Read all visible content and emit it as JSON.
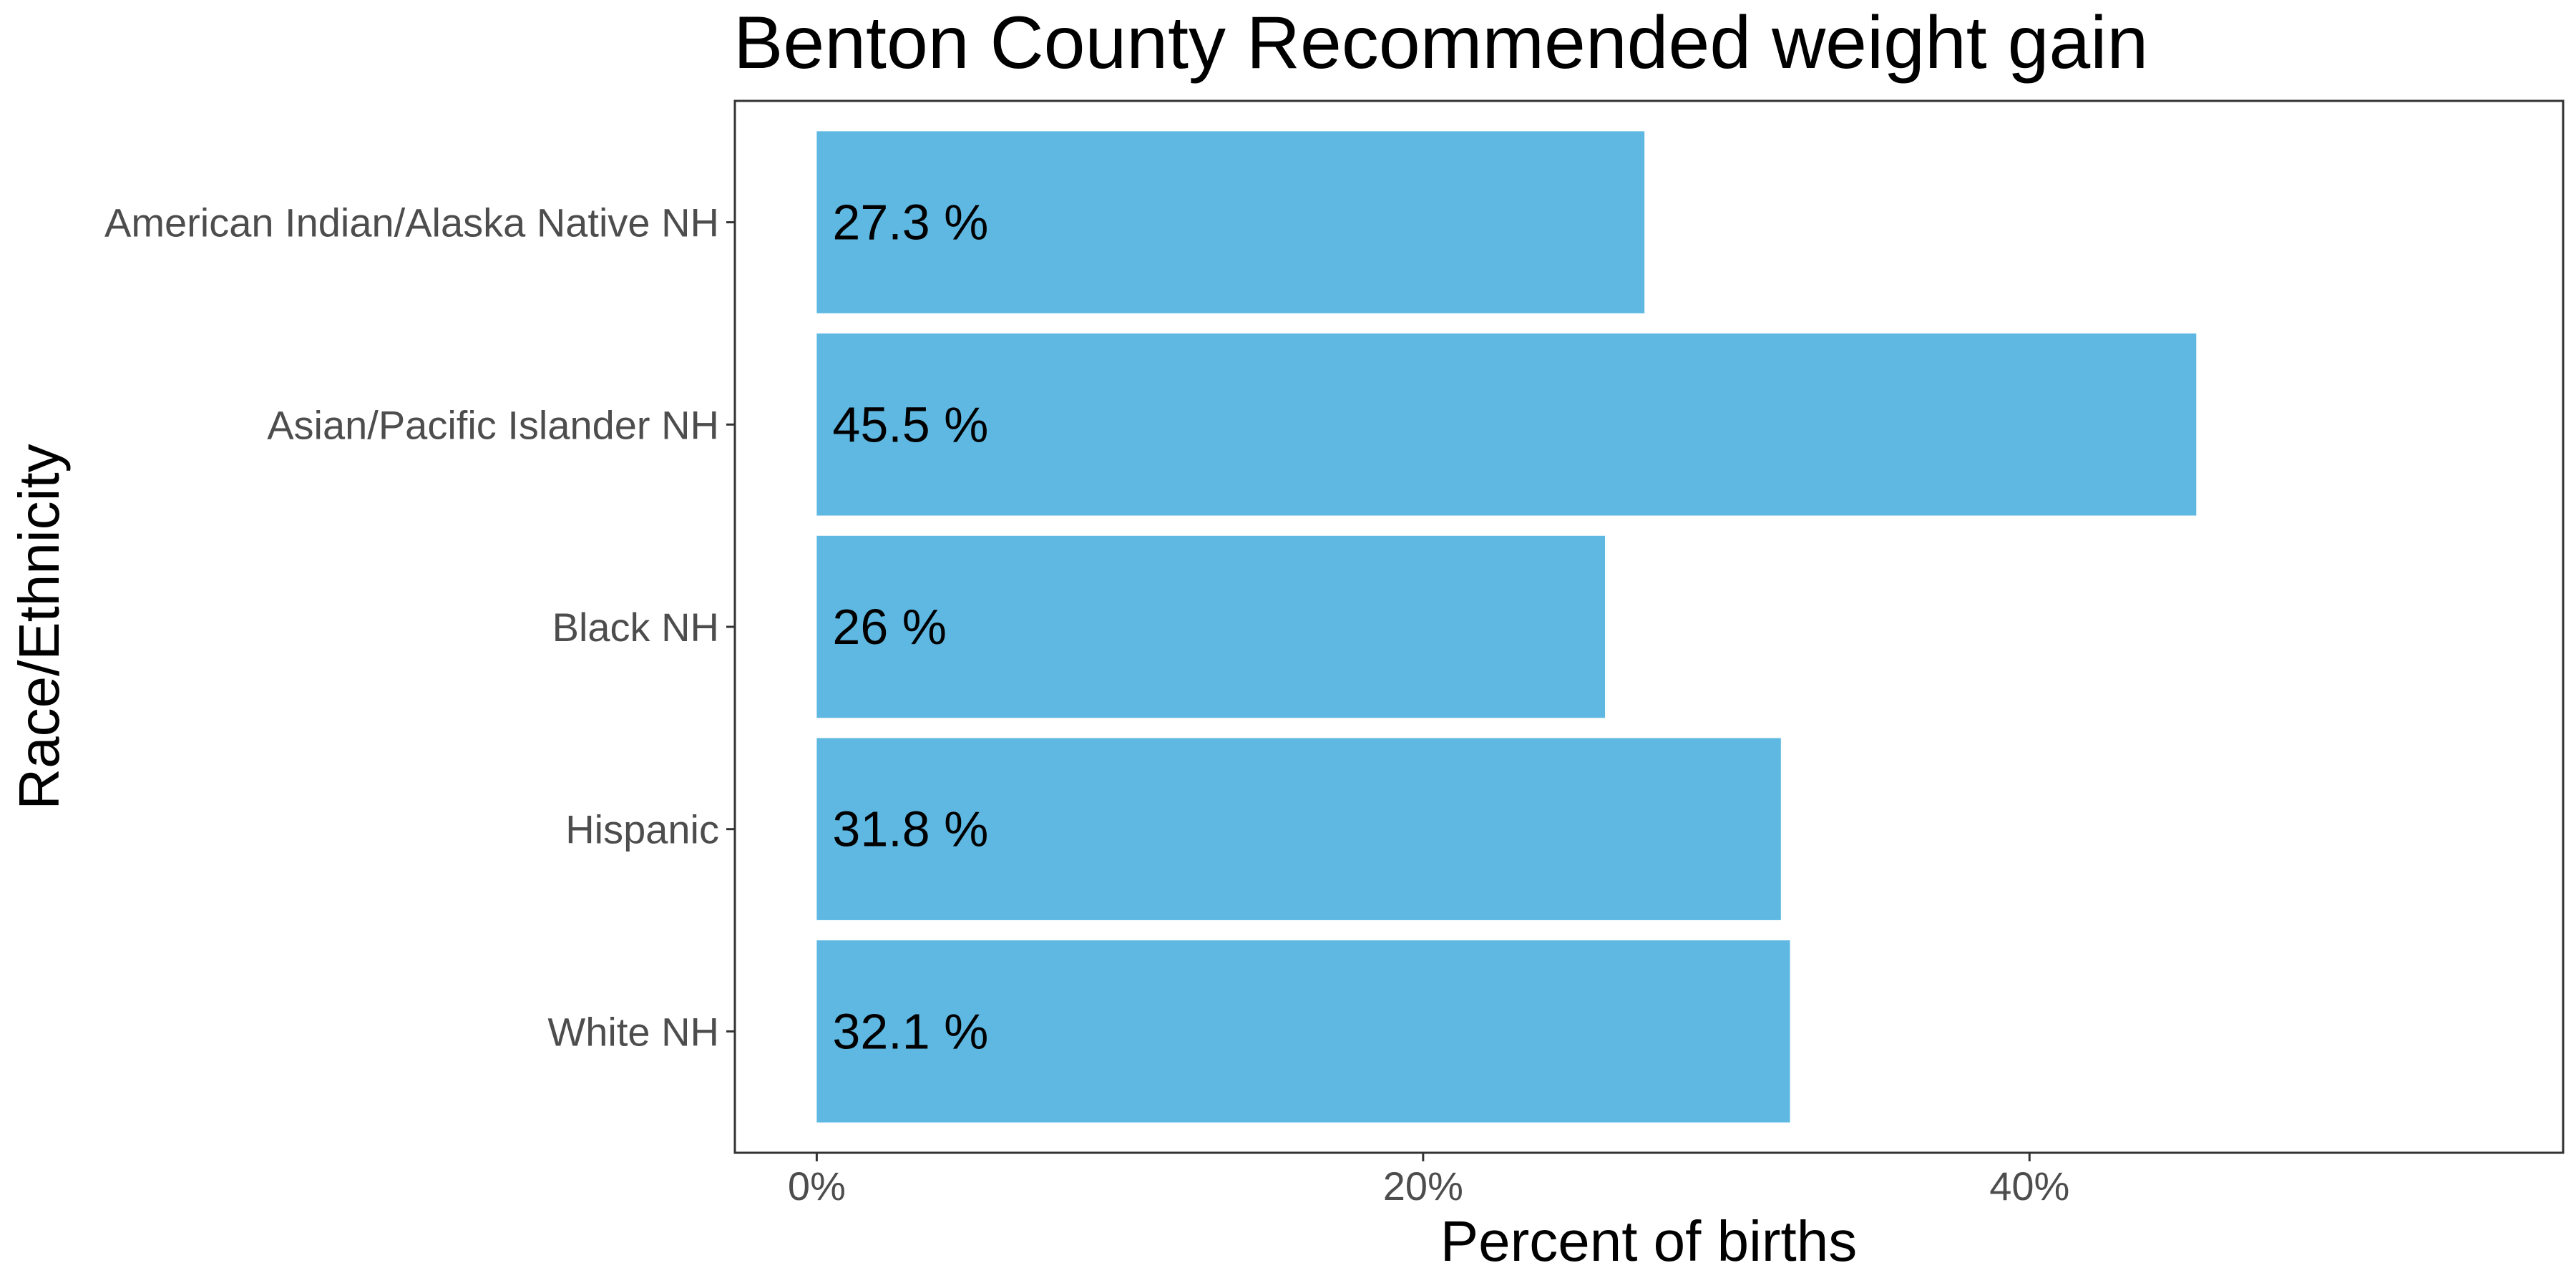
{
  "colors": {
    "bar": "#5eb8e2",
    "panel_border": "#333333",
    "tick": "#333333"
  },
  "chart_data": {
    "type": "bar",
    "orientation": "horizontal",
    "title": "Benton County Recommended weight gain",
    "xlabel": "Percent of births",
    "ylabel": "Race/Ethnicity",
    "categories": [
      "American Indian/Alaska Native NH",
      "Asian/Pacific Islander NH",
      "Black NH",
      "Hispanic",
      "White NH"
    ],
    "values": [
      27.3,
      45.5,
      26,
      31.8,
      32.1
    ],
    "data_labels": [
      "27.3 %",
      "45.5 %",
      "26 %",
      "31.8 %",
      "32.1 %"
    ],
    "x_ticks": [
      0,
      20,
      40
    ],
    "x_tick_labels": [
      "0%",
      "20%",
      "40%"
    ],
    "xlim": [
      -2.7,
      57.6
    ],
    "grid": false,
    "legend": "none"
  }
}
